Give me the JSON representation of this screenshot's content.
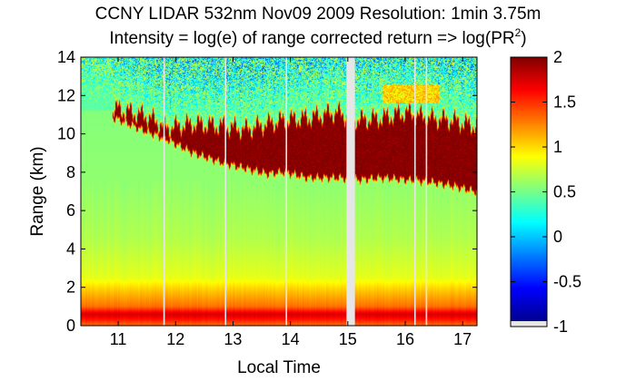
{
  "chart_data": {
    "type": "heatmap",
    "title": "CCNY LIDAR 532nm Nov09 2009 Resolution: 1min 3.75m",
    "subtitle_prefix": "Intensity = log(e) of range corrected return => log(PR",
    "subtitle_sup": "2",
    "subtitle_suffix": ")",
    "xlabel": "Local Time",
    "ylabel": "Range (km)",
    "xlim": [
      10.35,
      17.25
    ],
    "ylim": [
      0,
      14
    ],
    "xticks": [
      11,
      12,
      13,
      14,
      15,
      16,
      17
    ],
    "yticks": [
      0,
      2,
      4,
      6,
      8,
      10,
      12,
      14
    ],
    "colorbar": {
      "min": -1,
      "max": 2,
      "ticks": [
        2,
        1.5,
        1,
        0.5,
        0,
        -0.5,
        -1
      ],
      "tick_labels": [
        "2",
        "1.5",
        "1",
        "0.5",
        "0",
        "-0.5",
        "-1"
      ],
      "colormap": "jet",
      "missing_color": "#e6e6e6"
    },
    "data_gaps_local_time": [
      11.8,
      12.87,
      13.93,
      15.0,
      15.1,
      16.17,
      16.37
    ],
    "cloud_layer": {
      "description": "dense cloud, intensity ~2",
      "time": [
        10.95,
        11.5,
        11.85,
        12.3,
        12.8,
        13.2,
        13.6,
        13.9,
        14.3,
        14.8,
        15.2,
        15.6,
        16.0,
        16.4,
        16.8,
        17.2
      ],
      "base_km": [
        10.7,
        10.0,
        9.6,
        8.9,
        8.4,
        8.1,
        7.8,
        7.9,
        7.6,
        7.6,
        7.5,
        7.6,
        7.5,
        7.4,
        7.2,
        6.9
      ],
      "top_km": [
        11.5,
        11.1,
        10.5,
        10.7,
        10.6,
        10.4,
        10.7,
        10.9,
        11.0,
        11.3,
        10.9,
        11.0,
        11.3,
        11.0,
        10.9,
        10.6
      ]
    },
    "boundary_layer": {
      "description": "aerosol layer near surface, intensity 1.2-1.8",
      "height_km": [
        0,
        0.3,
        0.6,
        1.0,
        1.8,
        2.5,
        4.5,
        7.5
      ],
      "intensity": [
        1.3,
        1.55,
        1.75,
        1.3,
        1.05,
        0.8,
        0.65,
        0.55
      ]
    },
    "upper_region_noise": "above cloud top, mostly -0.5 to 0.5"
  }
}
